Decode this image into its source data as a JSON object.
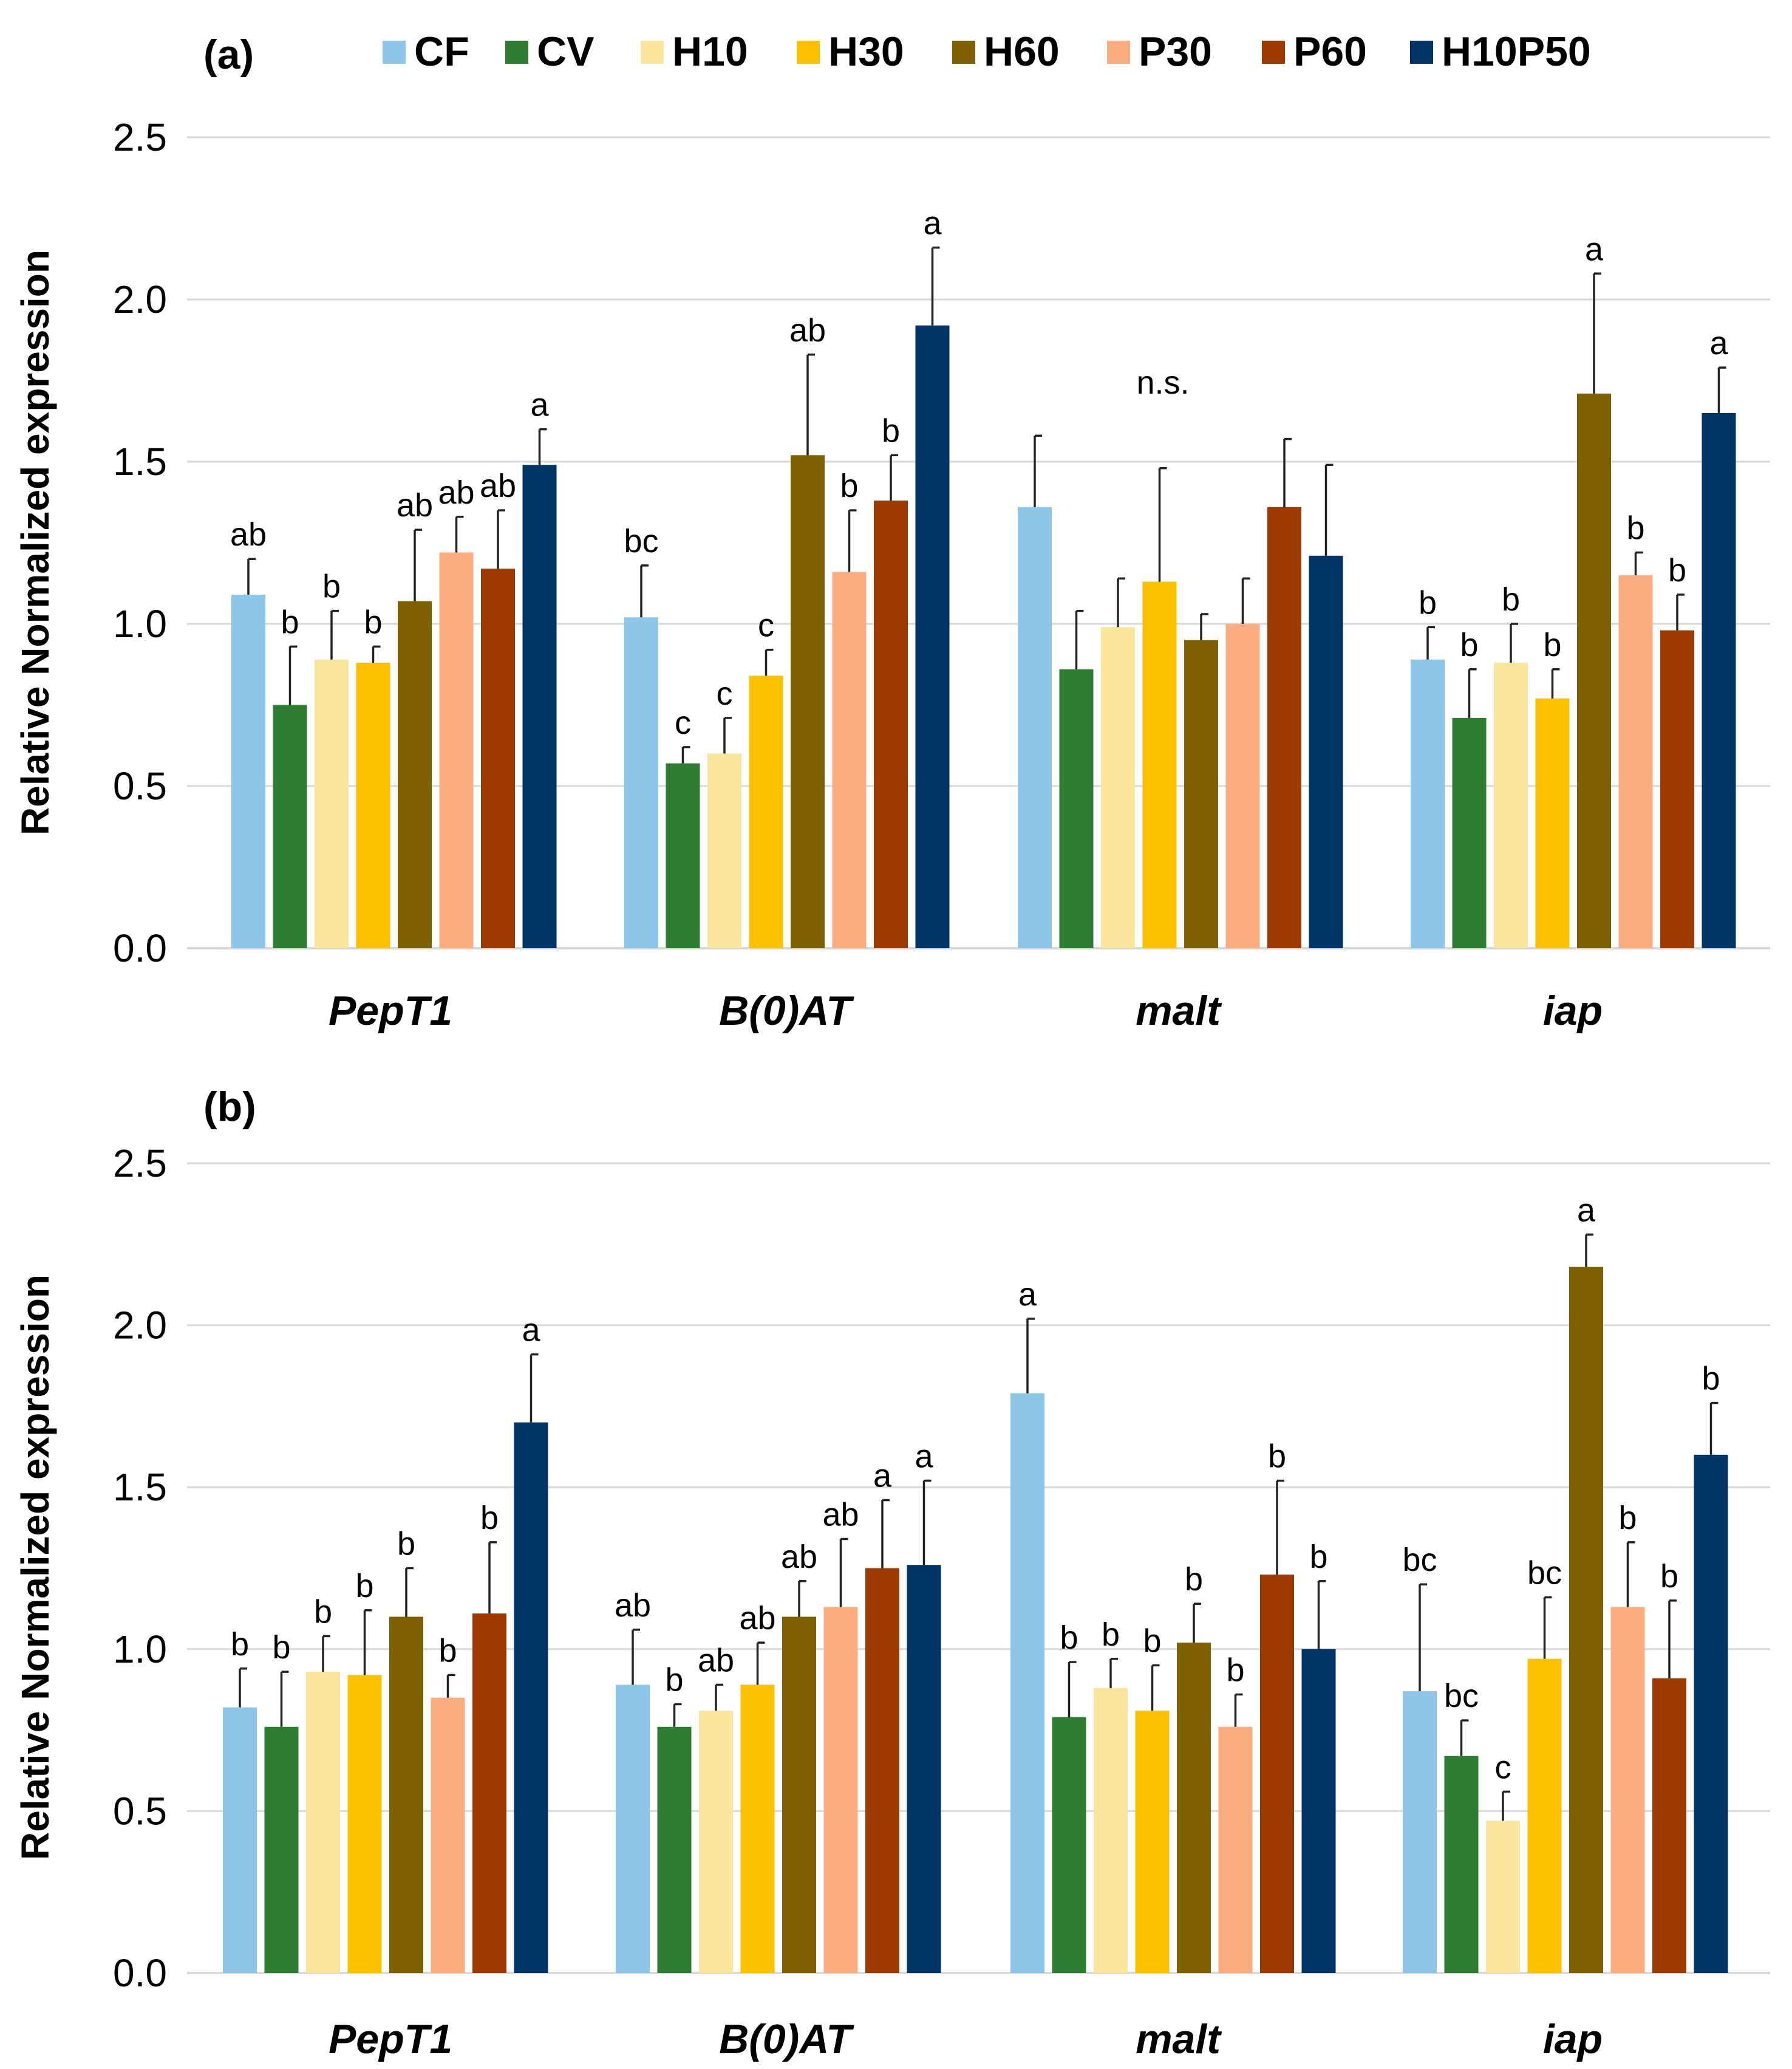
{
  "legend": [
    {
      "name": "CF",
      "color": "#8dc6e8"
    },
    {
      "name": "CV",
      "color": "#2e7d32"
    },
    {
      "name": "H10",
      "color": "#fbe59c"
    },
    {
      "name": "H30",
      "color": "#fcc000"
    },
    {
      "name": "H60",
      "color": "#7f6000"
    },
    {
      "name": "P30",
      "color": "#fbad80"
    },
    {
      "name": "P60",
      "color": "#9c3a00"
    },
    {
      "name": "H10P50",
      "color": "#003366"
    }
  ],
  "chart_data": [
    {
      "type": "bar",
      "panel": "(a)",
      "ylabel": "Relative Normalized expression",
      "ylim": [
        0,
        2.5
      ],
      "yticks": [
        "0.0",
        "0.5",
        "1.0",
        "1.5",
        "2.0",
        "2.5"
      ],
      "categories": [
        "PepT1",
        "B(0)AT",
        "malt",
        "iap"
      ],
      "grid": true,
      "legend_position": "top",
      "annotations": [
        {
          "category": "malt",
          "text": "n.s."
        }
      ],
      "series": [
        {
          "name": "CF",
          "values": [
            1.09,
            1.02,
            1.36,
            0.89
          ],
          "errors": [
            0.11,
            0.16,
            0.22,
            0.1
          ],
          "labels": [
            "ab",
            "bc",
            "",
            "b"
          ]
        },
        {
          "name": "CV",
          "values": [
            0.75,
            0.57,
            0.86,
            0.71
          ],
          "errors": [
            0.18,
            0.05,
            0.18,
            0.15
          ],
          "labels": [
            "b",
            "c",
            "",
            "b"
          ]
        },
        {
          "name": "H10",
          "values": [
            0.89,
            0.6,
            0.99,
            0.88
          ],
          "errors": [
            0.15,
            0.11,
            0.15,
            0.12
          ],
          "labels": [
            "b",
            "c",
            "",
            "b"
          ]
        },
        {
          "name": "H30",
          "values": [
            0.88,
            0.84,
            1.13,
            0.77
          ],
          "errors": [
            0.05,
            0.08,
            0.35,
            0.09
          ],
          "labels": [
            "b",
            "c",
            "",
            "b"
          ]
        },
        {
          "name": "H60",
          "values": [
            1.07,
            1.52,
            0.95,
            1.71
          ],
          "errors": [
            0.22,
            0.31,
            0.08,
            0.37
          ],
          "labels": [
            "ab",
            "ab",
            "",
            "a"
          ]
        },
        {
          "name": "P30",
          "values": [
            1.22,
            1.16,
            1.0,
            1.15
          ],
          "errors": [
            0.11,
            0.19,
            0.14,
            0.07
          ],
          "labels": [
            "ab",
            "b",
            "",
            "b"
          ]
        },
        {
          "name": "P60",
          "values": [
            1.17,
            1.38,
            1.36,
            0.98
          ],
          "errors": [
            0.18,
            0.14,
            0.21,
            0.11
          ],
          "labels": [
            "ab",
            "b",
            "",
            "b"
          ]
        },
        {
          "name": "H10P50",
          "values": [
            1.49,
            1.92,
            1.21,
            1.65
          ],
          "errors": [
            0.11,
            0.24,
            0.28,
            0.14
          ],
          "labels": [
            "a",
            "a",
            "",
            "a"
          ]
        }
      ]
    },
    {
      "type": "bar",
      "panel": "(b)",
      "ylabel": "Relative Normalized expression",
      "ylim": [
        0,
        2.5
      ],
      "yticks": [
        "0.0",
        "0.5",
        "1.0",
        "1.5",
        "2.0",
        "2.5"
      ],
      "categories": [
        "PepT1",
        "B(0)AT",
        "malt",
        "iap"
      ],
      "grid": true,
      "annotations": [],
      "series": [
        {
          "name": "CF",
          "values": [
            0.82,
            0.89,
            1.79,
            0.87
          ],
          "errors": [
            0.12,
            0.17,
            0.23,
            0.33
          ],
          "labels": [
            "b",
            "ab",
            "a",
            "bc"
          ]
        },
        {
          "name": "CV",
          "values": [
            0.76,
            0.76,
            0.79,
            0.67
          ],
          "errors": [
            0.17,
            0.07,
            0.17,
            0.11
          ],
          "labels": [
            "b",
            "b",
            "b",
            "bc"
          ]
        },
        {
          "name": "H10",
          "values": [
            0.93,
            0.81,
            0.88,
            0.47
          ],
          "errors": [
            0.11,
            0.08,
            0.09,
            0.09
          ],
          "labels": [
            "b",
            "ab",
            "b",
            "c"
          ]
        },
        {
          "name": "H30",
          "values": [
            0.92,
            0.89,
            0.81,
            0.97
          ],
          "errors": [
            0.2,
            0.13,
            0.14,
            0.19
          ],
          "labels": [
            "b",
            "ab",
            "b",
            "bc"
          ]
        },
        {
          "name": "H60",
          "values": [
            1.1,
            1.1,
            1.02,
            2.18
          ],
          "errors": [
            0.15,
            0.11,
            0.12,
            0.1
          ],
          "labels": [
            "b",
            "ab",
            "b",
            "a"
          ]
        },
        {
          "name": "P30",
          "values": [
            0.85,
            1.13,
            0.76,
            1.13
          ],
          "errors": [
            0.07,
            0.21,
            0.1,
            0.2
          ],
          "labels": [
            "b",
            "ab",
            "b",
            "b"
          ]
        },
        {
          "name": "P60",
          "values": [
            1.11,
            1.25,
            1.23,
            0.91
          ],
          "errors": [
            0.22,
            0.21,
            0.29,
            0.24
          ],
          "labels": [
            "b",
            "a",
            "b",
            "b"
          ]
        },
        {
          "name": "H10P50",
          "values": [
            1.7,
            1.26,
            1.0,
            1.6
          ],
          "errors": [
            0.21,
            0.26,
            0.21,
            0.16
          ],
          "labels": [
            "a",
            "a",
            "b",
            "b"
          ]
        }
      ]
    }
  ]
}
